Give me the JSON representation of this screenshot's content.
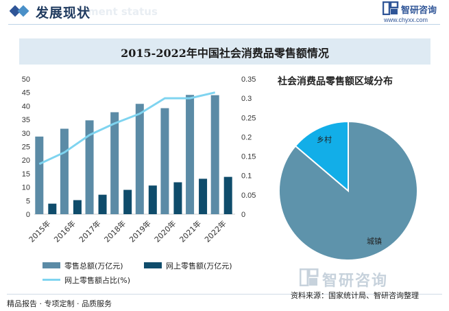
{
  "header": {
    "title": "发展现状",
    "watermark": "ment status",
    "logo_name": "智研咨询",
    "url": "www.chyxx.com"
  },
  "chart_title": "2015-2022年中国社会消费品零售额情况",
  "pie_title": "社会消费品零售额区域分布",
  "colors": {
    "total": "#5b8ba6",
    "online": "#0f4c6b",
    "share": "#7fd4f0",
    "city": "#5e93ab",
    "rural": "#12aee8",
    "title_band": "#deeaf3"
  },
  "legend": {
    "total": "零售总额(万亿元)",
    "online": "网上零售额(万亿元)",
    "share": "网上零售额占比(%)"
  },
  "chart_data": [
    {
      "type": "bar",
      "categories": [
        "2015年",
        "2016年",
        "2017年",
        "2018年",
        "2019年",
        "2020年",
        "2021年",
        "2022年"
      ],
      "series": [
        {
          "name": "零售总额(万亿元)",
          "axis": "left",
          "values": [
            28.7,
            31.6,
            34.7,
            37.7,
            40.8,
            39.2,
            44.1,
            44.0
          ]
        },
        {
          "name": "网上零售额(万亿元)",
          "axis": "left",
          "values": [
            3.9,
            5.2,
            7.2,
            9.0,
            10.6,
            11.8,
            13.1,
            13.8
          ]
        },
        {
          "name": "网上零售额占比(%)",
          "type": "line",
          "axis": "right",
          "values": [
            0.13,
            0.16,
            0.205,
            0.235,
            0.26,
            0.3,
            0.3,
            0.315
          ]
        }
      ],
      "ylim": [
        0,
        50
      ],
      "yticks": [
        "0",
        "5",
        "10",
        "15",
        "20",
        "25",
        "30",
        "35",
        "40",
        "45",
        "50"
      ],
      "y2lim": [
        0,
        0.35
      ],
      "y2ticks": [
        "0",
        "0.05",
        "0.1",
        "0.15",
        "0.2",
        "0.25",
        "0.3",
        "0.35"
      ],
      "grid": false,
      "legend": "bottom"
    },
    {
      "type": "pie",
      "title": "社会消费品零售额区域分布",
      "slices": [
        {
          "label": "城镇",
          "value": 86.2
        },
        {
          "label": "乡村",
          "value": 13.8
        }
      ]
    }
  ],
  "footer": {
    "left": "精品报告 · 专项定制 · 品质服务",
    "source": "资料来源：国家统计局、智研咨询整理",
    "watermark": "智研咨询"
  }
}
